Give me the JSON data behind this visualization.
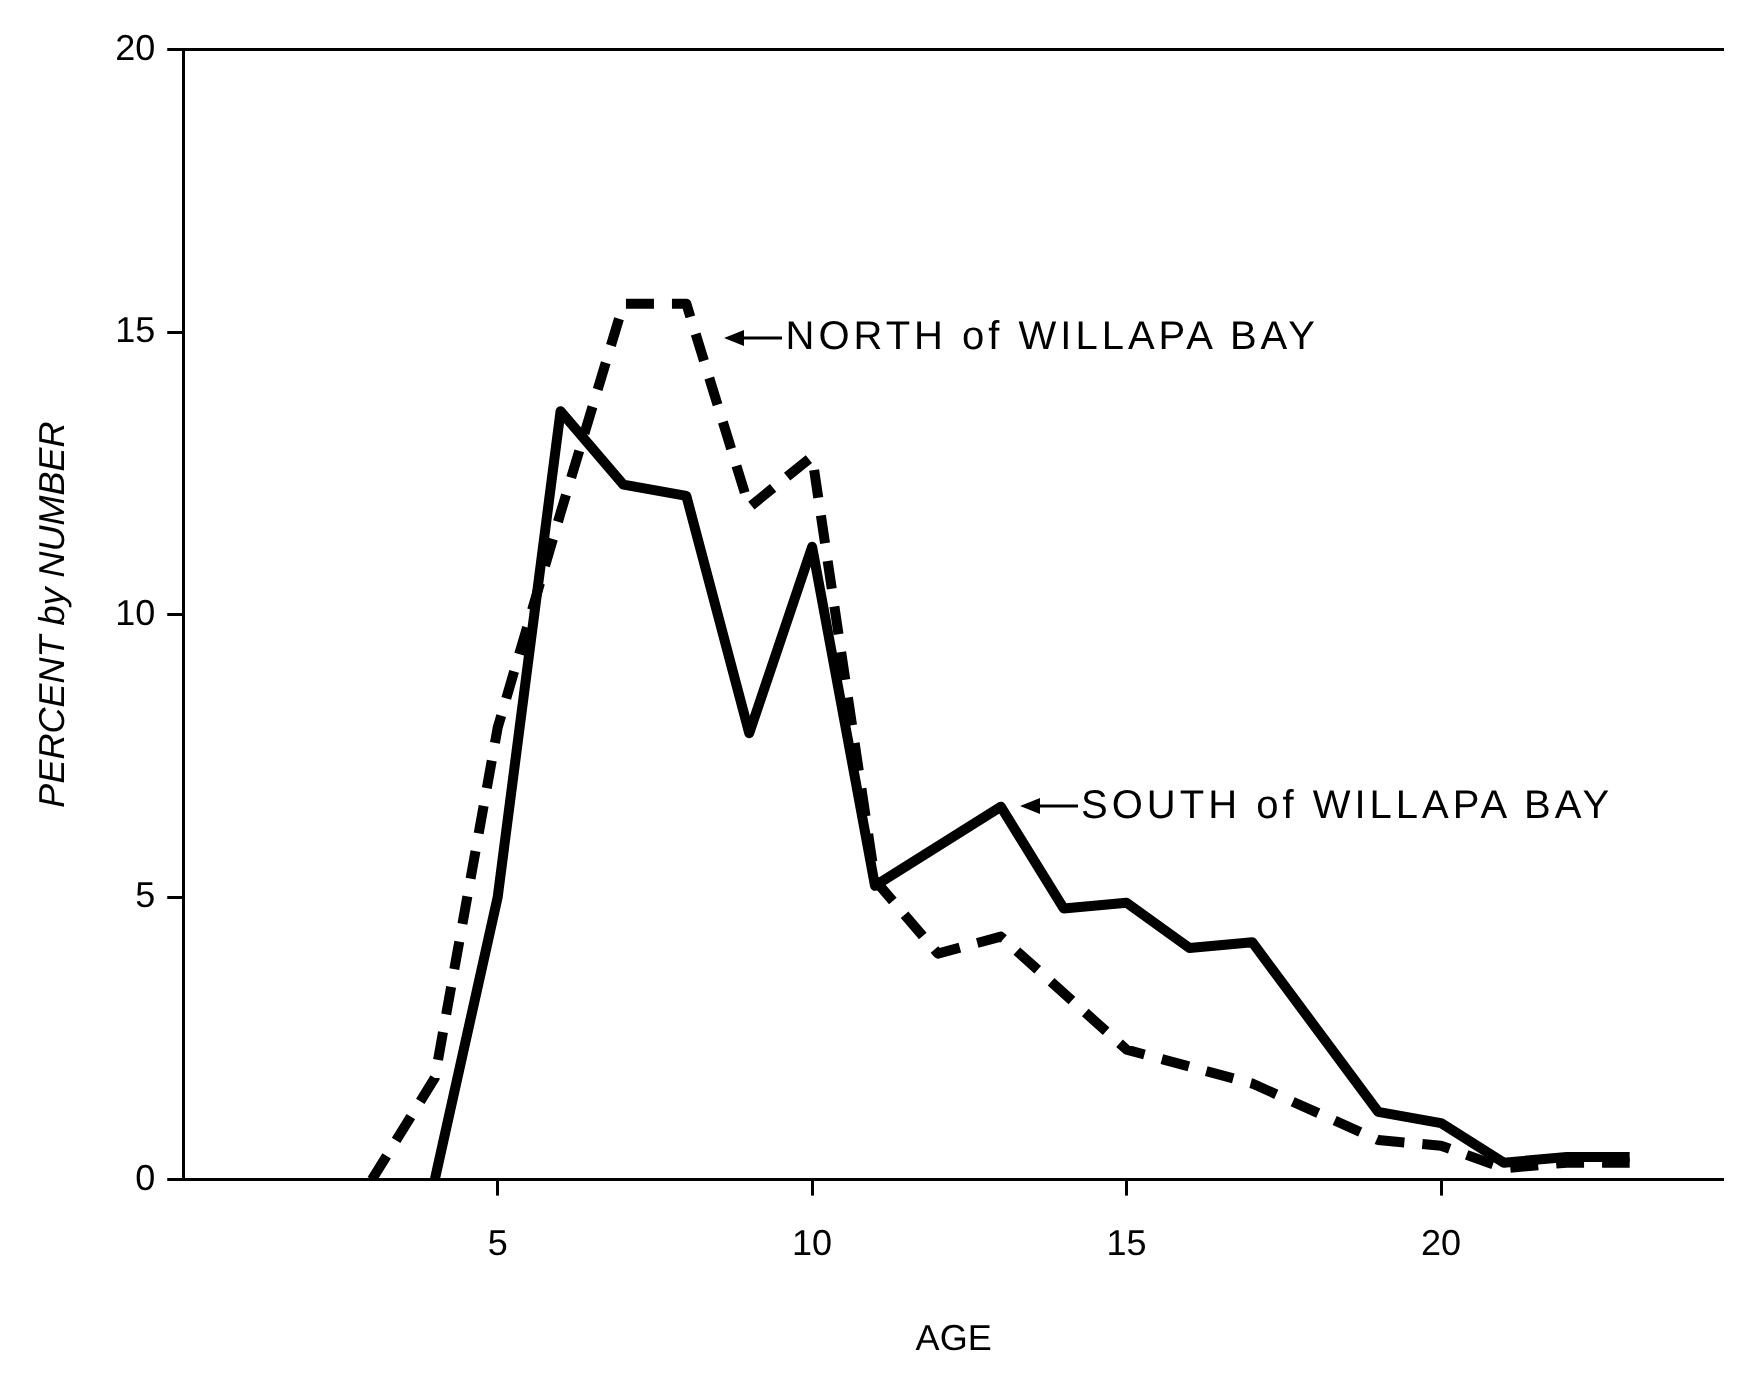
{
  "chart_data": {
    "type": "line",
    "xlabel": "AGE",
    "ylabel": "PERCENT by NUMBER",
    "xlim": [
      0,
      24.5
    ],
    "ylim": [
      0,
      20
    ],
    "xticks": [
      5,
      10,
      15,
      20
    ],
    "yticks": [
      0,
      5,
      10,
      15,
      20
    ],
    "grid": false,
    "legend": false,
    "marker": "none",
    "series": [
      {
        "color": "#000000",
        "line_style": "solid",
        "x": [
          4,
          5,
          6,
          7,
          8,
          9,
          10,
          11,
          13,
          14,
          15,
          16,
          17,
          19,
          20,
          21,
          22,
          23
        ],
        "values": [
          0,
          5,
          13.6,
          12.3,
          12.1,
          7.9,
          11.2,
          5.2,
          6.6,
          4.8,
          4.9,
          4.1,
          4.2,
          1.2,
          1.0,
          0.3,
          0.4,
          0.4
        ]
      },
      {
        "color": "#000000",
        "line_style": "dashed",
        "x": [
          3,
          4,
          5,
          6,
          7,
          8,
          9,
          10,
          11,
          12,
          13,
          15,
          17,
          19,
          20,
          21,
          22,
          23
        ],
        "values": [
          0,
          1.8,
          8.0,
          11.8,
          15.5,
          15.5,
          11.9,
          12.8,
          5.3,
          4.0,
          4.3,
          2.3,
          1.7,
          0.7,
          0.6,
          0.2,
          0.3,
          0.3
        ]
      }
    ],
    "annotations": [
      {
        "text": "NORTH of WILLAPA BAY",
        "x": 8.4,
        "y": 14.9
      },
      {
        "text": "SOUTH of WILLAPA BAY",
        "x": 13.1,
        "y": 6.6
      }
    ]
  }
}
